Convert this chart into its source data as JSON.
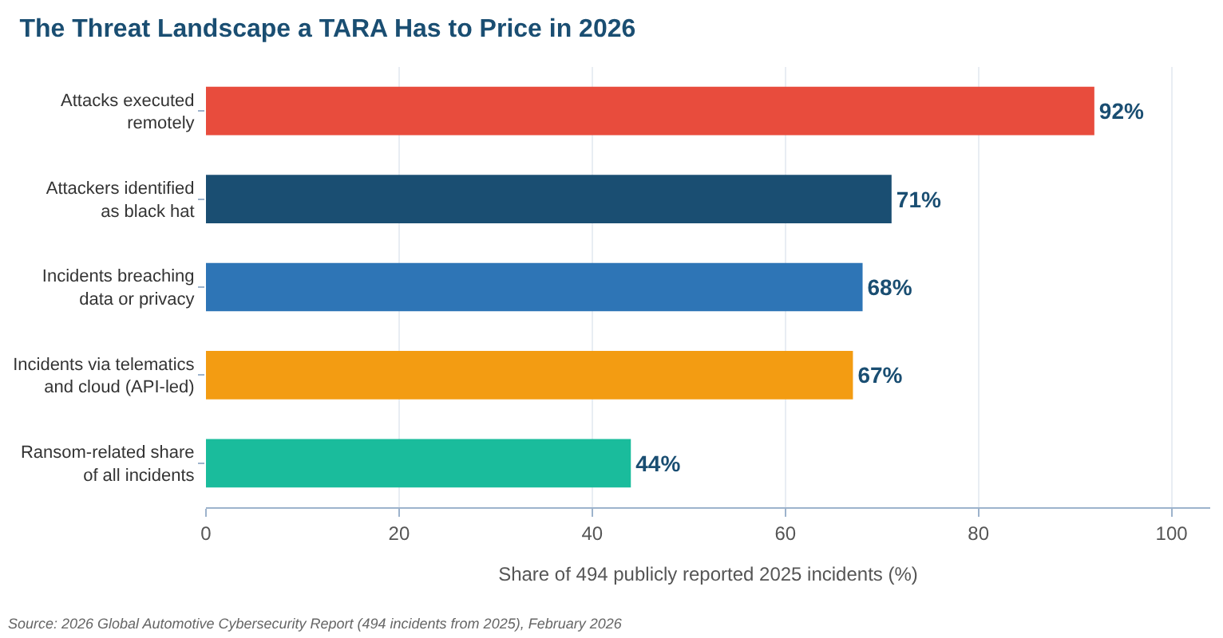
{
  "chart_data": {
    "type": "bar",
    "orientation": "horizontal",
    "title": "The Threat Landscape a TARA Has to Price in 2026",
    "categories": [
      "Attacks executed\nremotely",
      "Attackers identified\nas black hat",
      "Incidents breaching\ndata or privacy",
      "Incidents via telematics\nand cloud (API-led)",
      "Ransom-related share\nof all incidents"
    ],
    "values": [
      92,
      71,
      68,
      67,
      44
    ],
    "colors": [
      "#e84c3d",
      "#1a4e72",
      "#2e75b6",
      "#f39c12",
      "#1abc9c"
    ],
    "value_labels": [
      "92%",
      "71%",
      "68%",
      "67%",
      "44%"
    ],
    "xlabel": "Share of 494 publicly reported 2025 incidents (%)",
    "xlim": [
      0,
      104
    ],
    "xticks": [
      0,
      20,
      40,
      60,
      80,
      100
    ],
    "grid": "x",
    "annotations": [
      "Source: 2026 Global Automotive Cybersecurity Report (494 incidents from 2025), February 2026"
    ]
  }
}
